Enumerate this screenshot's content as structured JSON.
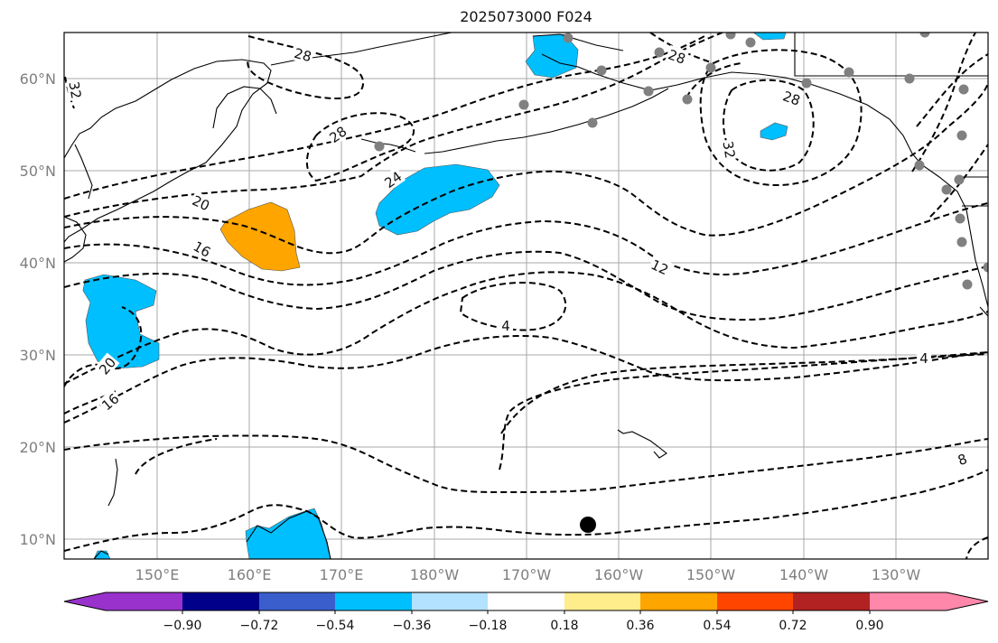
{
  "title": "2025073000 F024",
  "lat_labels": [
    "60°N",
    "50°N",
    "40°N",
    "30°N",
    "20°N",
    "10°N"
  ],
  "lon_labels": [
    "150°E",
    "160°E",
    "170°E",
    "180°W",
    "170°W",
    "160°W",
    "150°W",
    "140°W",
    "130°W"
  ],
  "contour_labels": [
    "32",
    "28",
    "28",
    "28",
    "24",
    "20",
    "16",
    "20",
    "16",
    "32",
    "28",
    "12",
    "4",
    "4",
    "8"
  ],
  "colorbar": {
    "colors": [
      "#9932cc",
      "#00008b",
      "#3a5fcd",
      "#00bfff",
      "#b2e2ff",
      "#ffffff",
      "#ffec8b",
      "#ffa500",
      "#ff4500",
      "#b22222",
      "#ff88aa"
    ],
    "ticks": [
      "−0.90",
      "−0.72",
      "−0.54",
      "−0.36",
      "−0.18",
      "0.18",
      "0.36",
      "0.54",
      "0.72",
      "0.90"
    ]
  },
  "colors": {
    "positive_fill": "#ffa500",
    "negative_fill": "#00bfff",
    "station_marker": "#808080",
    "center_marker": "#000000"
  }
}
